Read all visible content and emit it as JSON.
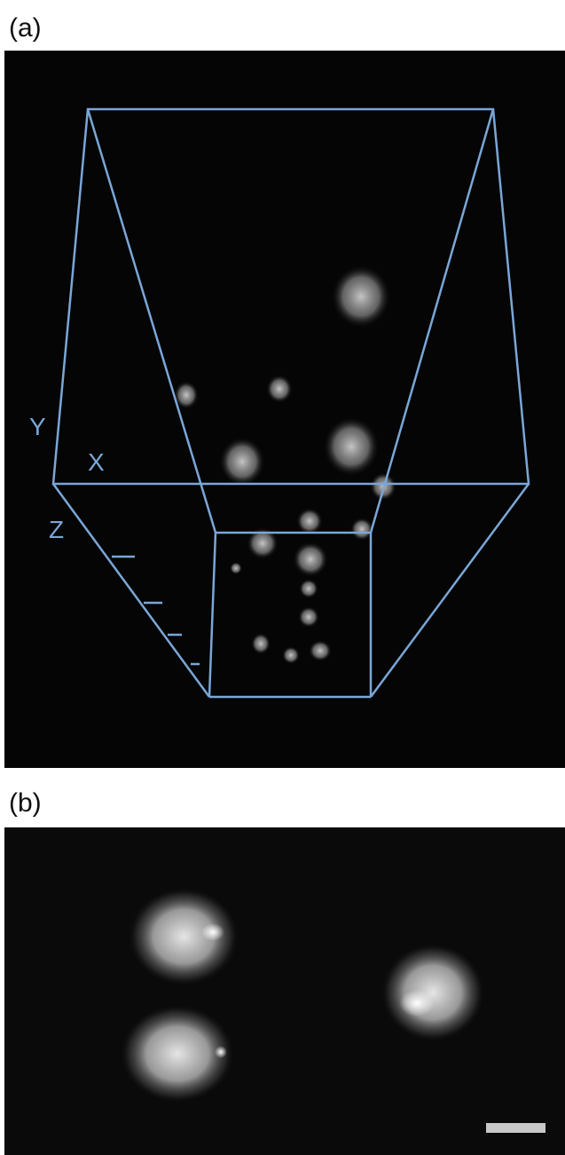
{
  "panels": [
    {
      "label": "(a)",
      "axes": {
        "y": "Y",
        "x": "X",
        "z": "Z"
      }
    },
    {
      "label": "(b)"
    }
  ]
}
